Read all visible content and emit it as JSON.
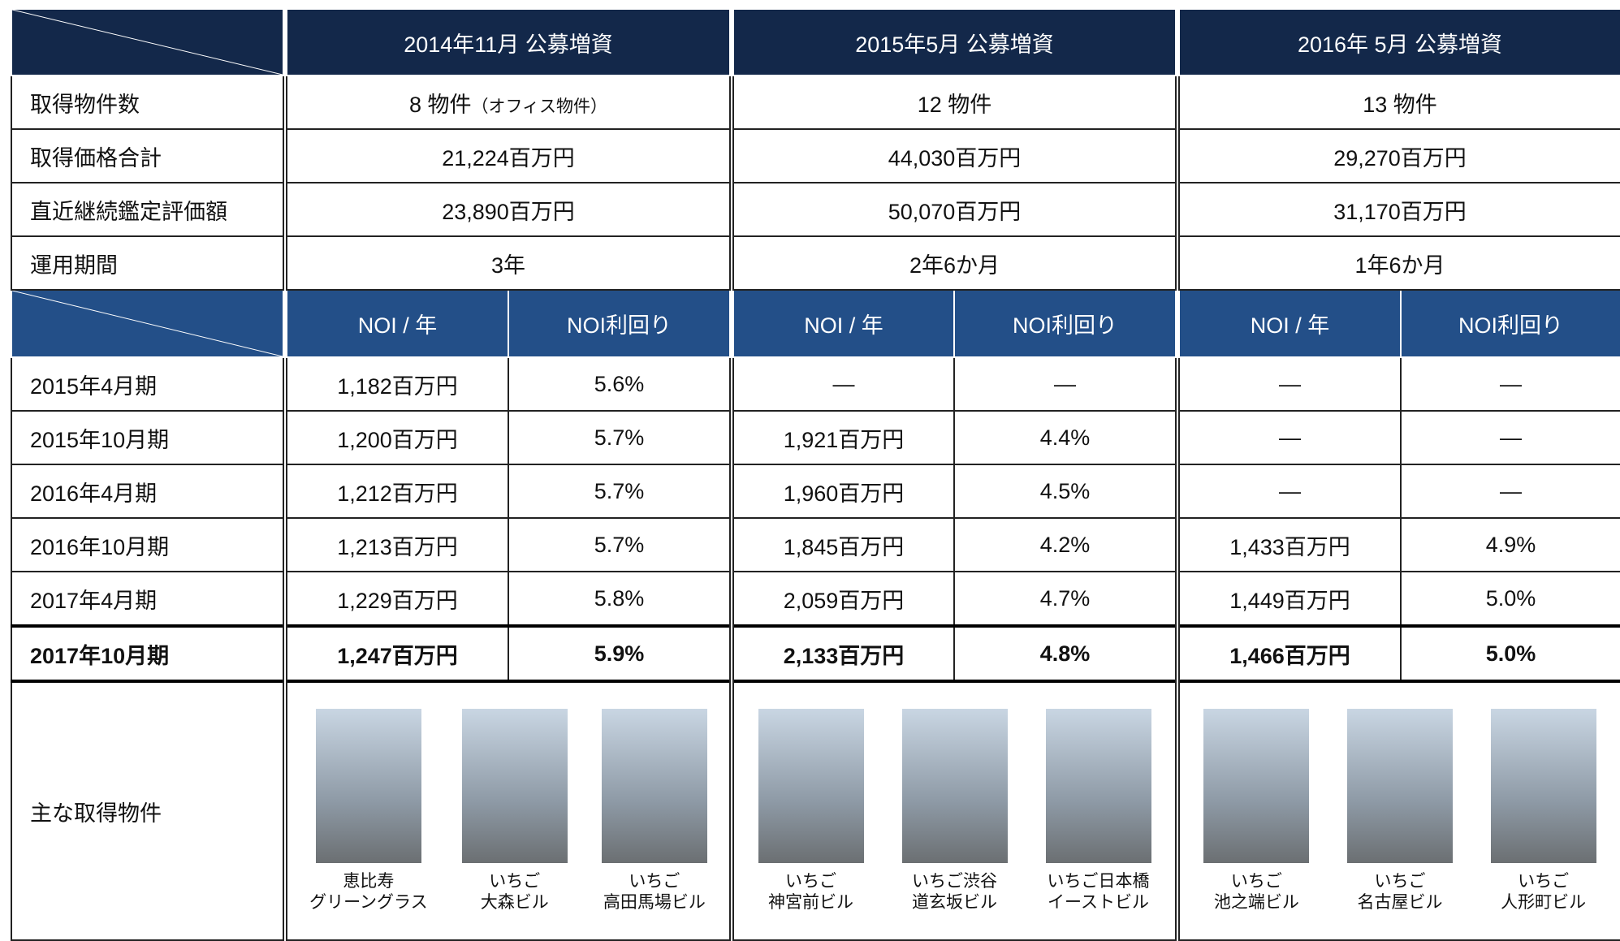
{
  "header": {
    "columns": [
      "2014年11月  公募増資",
      "2015年5月  公募増資",
      "2016年 5月  公募増資"
    ]
  },
  "summary_rows": [
    {
      "label": "取得物件数",
      "values": [
        [
          "8 物件",
          "（オフィス物件）"
        ],
        [
          "12 物件"
        ],
        [
          "13 物件"
        ]
      ]
    },
    {
      "label": "取得価格合計",
      "values": [
        [
          "21,224百万円"
        ],
        [
          "44,030百万円"
        ],
        [
          "29,270百万円"
        ]
      ]
    },
    {
      "label": "直近継続鑑定評価額",
      "values": [
        [
          "23,890百万円"
        ],
        [
          "50,070百万円"
        ],
        [
          "31,170百万円"
        ]
      ]
    },
    {
      "label": "運用期間",
      "values": [
        [
          "3年"
        ],
        [
          "2年6か月"
        ],
        [
          "1年6か月"
        ]
      ]
    }
  ],
  "sub_header": [
    "NOI / 年",
    "NOI利回り",
    "NOI / 年",
    "NOI利回り",
    "NOI / 年",
    "NOI利回り"
  ],
  "noi_rows": [
    {
      "label": "2015年4月期",
      "cells": [
        "1,182百万円",
        "5.6%",
        "—",
        "—",
        "—",
        "—"
      ]
    },
    {
      "label": "2015年10月期",
      "cells": [
        "1,200百万円",
        "5.7%",
        "1,921百万円",
        "4.4%",
        "—",
        "—"
      ]
    },
    {
      "label": "2016年4月期",
      "cells": [
        "1,212百万円",
        "5.7%",
        "1,960百万円",
        "4.5%",
        "—",
        "—"
      ]
    },
    {
      "label": "2016年10月期",
      "cells": [
        "1,213百万円",
        "5.7%",
        "1,845百万円",
        "4.2%",
        "1,433百万円",
        "4.9%"
      ]
    },
    {
      "label": "2017年4月期",
      "cells": [
        "1,229百万円",
        "5.8%",
        "2,059百万円",
        "4.7%",
        "1,449百万円",
        "5.0%"
      ]
    },
    {
      "label": "2017年10月期",
      "cells": [
        "1,247百万円",
        "5.9%",
        "2,133百万円",
        "4.8%",
        "1,466百万円",
        "5.0%"
      ]
    }
  ],
  "properties": {
    "label": "主な取得物件",
    "groups": [
      [
        [
          "恵比寿",
          "グリーングラス"
        ],
        [
          "いちご",
          "大森ビル"
        ],
        [
          "いちご",
          "高田馬場ビル"
        ]
      ],
      [
        [
          "いちご",
          "神宮前ビル"
        ],
        [
          "いちご渋谷",
          "道玄坂ビル"
        ],
        [
          "いちご日本橋",
          "イーストビル"
        ]
      ],
      [
        [
          "いちご",
          "池之端ビル"
        ],
        [
          "いちご",
          "名古屋ビル"
        ],
        [
          "いちご",
          "人形町ビル"
        ]
      ]
    ]
  }
}
